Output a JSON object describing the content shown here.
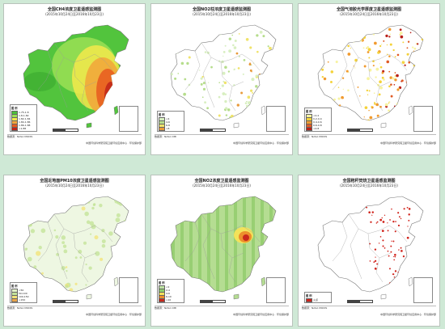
{
  "panels": [
    {
      "title": "全国CH4浓度卫星遥感监测图",
      "subtitle": "(2015年10月24日至2016年10月23日)",
      "legend_title": "图 例",
      "legend_items": [
        "1.75-1.8",
        "1.8-1.82",
        "1.82-1.84",
        "1.84-1.86",
        "1.86-1.88",
        ">1.88"
      ],
      "legend_colors": [
        "#4cbf3a",
        "#9be055",
        "#f5e94b",
        "#f2a53a",
        "#e85a1e",
        "#c0241a"
      ],
      "style": "ch4",
      "footer_text": "数据源：NASA MODIS",
      "footer_org": "中国环境科学研究院卫星环境应用中心 · 环境保护部"
    },
    {
      "title": "全国NO2柱浓度卫星遥感监测图",
      "subtitle": "(2015年10月24日至2016年10月23日)",
      "legend_title": "图 例",
      "legend_items": [
        "<4",
        "4-6",
        "6-8",
        ">8"
      ],
      "legend_colors": [
        "#d8efc0",
        "#b6dd8c",
        "#f0e36a",
        "#e89a3a"
      ],
      "style": "sparse-green",
      "footer_text": "数据源：NASA OMI",
      "footer_org": "中国环境科学研究院卫星环境应用中心 · 环境保护部"
    },
    {
      "title": "全国气溶胶光学厚度卫星遥感监测图",
      "subtitle": "(2015年10月24日至2016年10月23日)",
      "legend_title": "图 例",
      "legend_items": [
        "<0.2",
        "0.2-0.4",
        "0.4-0.6",
        "0.6-0.8",
        ">0.8"
      ],
      "legend_colors": [
        "#f7f3a0",
        "#f4d23a",
        "#f19a2e",
        "#e05a24",
        "#b92018"
      ],
      "style": "aod",
      "footer_text": "数据源：NASA MODIS",
      "footer_org": "中国环境科学研究院卫星环境应用中心 · 环境保护部"
    },
    {
      "title": "全国近地面PM10浓度卫星遥感监测图",
      "subtitle": "(2015年10月24日至2016年10月23日)",
      "legend_title": "图 例",
      "legend_items": [
        "<50",
        "50-100",
        "100-150",
        ">150"
      ],
      "legend_colors": [
        "#e3f2c8",
        "#c4e39a",
        "#f2e37a",
        "#e9a44a"
      ],
      "style": "pm",
      "footer_text": "数据源：NASA MODIS",
      "footer_org": "中国环境科学研究院卫星环境应用中心 · 环境保护部"
    },
    {
      "title": "全国NO2浓度卫星遥感监测图",
      "subtitle": "(2015年10月24日至2016年10月23日)",
      "legend_title": "图 例",
      "legend_items": [
        "<2",
        "2-4",
        "4-6",
        "6-10",
        ">10"
      ],
      "legend_colors": [
        "#bfe3a3",
        "#8fcf6a",
        "#f3e25a",
        "#ec8f2c",
        "#c8281c"
      ],
      "style": "no2",
      "footer_text": "数据源：NASA OMI",
      "footer_org": "中国环境科学研究院卫星环境应用中心 · 环境保护部"
    },
    {
      "title": "全国秸秆焚烧卫星遥感监测图",
      "subtitle": "(2015年10月24日至2016年10月23日)",
      "legend_title": "图 例",
      "legend_items": [
        "火点"
      ],
      "legend_colors": [
        "#d0221a"
      ],
      "style": "fire",
      "footer_text": "数据源：NASA MODIS",
      "footer_org": "中国环境科学研究院卫星环境应用中心 · 环境保护部"
    }
  ]
}
